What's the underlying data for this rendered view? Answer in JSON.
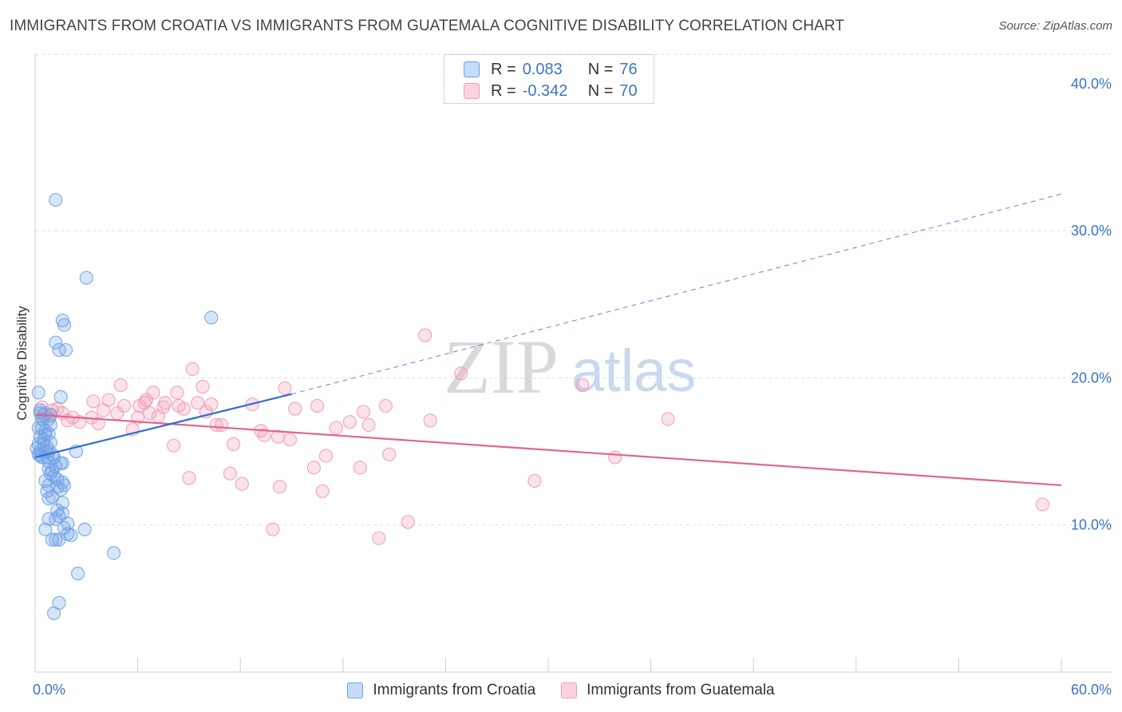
{
  "chart_data": {
    "type": "scatter",
    "title": "IMMIGRANTS FROM CROATIA VS IMMIGRANTS FROM GUATEMALA COGNITIVE DISABILITY CORRELATION CHART",
    "source": "Source: ZipAtlas.com",
    "ylabel": "Cognitive Disability",
    "xlabel": "",
    "xlim": [
      0,
      60
    ],
    "ylim": [
      0,
      42
    ],
    "x_tick_labels": [
      {
        "value": 0,
        "label": "0.0%"
      },
      {
        "value": 60,
        "label": "60.0%"
      }
    ],
    "y_tick_labels": [
      {
        "value": 10,
        "label": "10.0%"
      },
      {
        "value": 20,
        "label": "20.0%"
      },
      {
        "value": 30,
        "label": "30.0%"
      },
      {
        "value": 40,
        "label": "40.0%"
      }
    ],
    "grid": "horizontal dashed",
    "legend_placement": "top-center",
    "watermark": {
      "part1": "ZIP",
      "part2": "atlas"
    },
    "series": [
      {
        "name": "Immigrants from Croatia",
        "color": "#6fa3e6",
        "line_color": "#2f6fcf",
        "stats": {
          "r_label": "R =",
          "r_value": "0.083",
          "n_label": "N =",
          "n_value": "76"
        },
        "trend": {
          "x0": 0,
          "y0": 14.6,
          "x1": 15,
          "y1": 18.9,
          "dash_x1": 60,
          "dash_y1": 32.5
        },
        "points": [
          [
            0.2,
            19.0
          ],
          [
            0.3,
            17.8
          ],
          [
            0.5,
            17.5
          ],
          [
            0.4,
            17.2
          ],
          [
            0.8,
            17.2
          ],
          [
            0.2,
            16.6
          ],
          [
            0.4,
            16.6
          ],
          [
            0.9,
            16.8
          ],
          [
            0.3,
            16.0
          ],
          [
            0.6,
            16.2
          ],
          [
            0.8,
            16.2
          ],
          [
            0.2,
            15.5
          ],
          [
            0.5,
            15.5
          ],
          [
            0.1,
            15.2
          ],
          [
            0.3,
            15.0
          ],
          [
            0.6,
            15.0
          ],
          [
            0.8,
            15.0
          ],
          [
            0.2,
            14.8
          ],
          [
            0.4,
            14.6
          ],
          [
            0.7,
            14.6
          ],
          [
            1.0,
            14.8
          ],
          [
            1.1,
            14.6
          ],
          [
            2.4,
            15.0
          ],
          [
            0.8,
            14.3
          ],
          [
            1.5,
            14.2
          ],
          [
            1.6,
            14.2
          ],
          [
            0.8,
            13.8
          ],
          [
            1.0,
            13.7
          ],
          [
            0.6,
            13.0
          ],
          [
            1.1,
            13.3
          ],
          [
            1.3,
            13.1
          ],
          [
            1.6,
            12.9
          ],
          [
            0.8,
            12.7
          ],
          [
            1.3,
            12.6
          ],
          [
            1.7,
            12.7
          ],
          [
            0.7,
            12.3
          ],
          [
            1.0,
            11.9
          ],
          [
            0.8,
            11.8
          ],
          [
            1.6,
            11.5
          ],
          [
            1.6,
            10.8
          ],
          [
            1.4,
            10.6
          ],
          [
            0.8,
            10.4
          ],
          [
            1.2,
            10.4
          ],
          [
            1.9,
            10.1
          ],
          [
            0.6,
            9.7
          ],
          [
            1.9,
            9.4
          ],
          [
            2.1,
            9.3
          ],
          [
            2.9,
            9.7
          ],
          [
            1.0,
            9.0
          ],
          [
            1.2,
            9.0
          ],
          [
            1.4,
            9.0
          ],
          [
            4.6,
            8.1
          ],
          [
            2.5,
            6.7
          ],
          [
            1.4,
            4.7
          ],
          [
            1.1,
            4.0
          ],
          [
            1.2,
            32.1
          ],
          [
            3.0,
            26.8
          ],
          [
            10.3,
            24.1
          ],
          [
            1.6,
            23.9
          ],
          [
            1.7,
            23.6
          ],
          [
            1.2,
            22.4
          ],
          [
            1.4,
            21.9
          ],
          [
            1.8,
            21.9
          ],
          [
            1.5,
            18.7
          ],
          [
            0.3,
            17.6
          ],
          [
            0.9,
            17.5
          ],
          [
            0.5,
            15.8
          ],
          [
            0.7,
            15.3
          ],
          [
            0.3,
            14.7
          ],
          [
            1.2,
            14.0
          ],
          [
            1.5,
            12.4
          ],
          [
            0.9,
            13.5
          ],
          [
            1.3,
            11.0
          ],
          [
            1.7,
            9.8
          ],
          [
            0.6,
            16.4
          ],
          [
            0.9,
            15.6
          ]
        ]
      },
      {
        "name": "Immigrants from Guatemala",
        "color": "#f29ab4",
        "line_color": "#e0658f",
        "stats": {
          "r_label": "R =",
          "r_value": "-0.342",
          "n_label": "N =",
          "n_value": "70"
        },
        "trend": {
          "x0": 0,
          "y0": 17.5,
          "x1": 60,
          "y1": 12.7
        },
        "points": [
          [
            0.4,
            18.0
          ],
          [
            0.6,
            17.6
          ],
          [
            1.0,
            17.8
          ],
          [
            1.3,
            17.9
          ],
          [
            0.5,
            17.2
          ],
          [
            0.9,
            17.4
          ],
          [
            1.6,
            17.6
          ],
          [
            2.2,
            17.3
          ],
          [
            2.6,
            17.0
          ],
          [
            3.3,
            17.3
          ],
          [
            1.9,
            17.1
          ],
          [
            3.4,
            18.4
          ],
          [
            4.0,
            17.8
          ],
          [
            4.3,
            18.5
          ],
          [
            4.8,
            17.6
          ],
          [
            5.0,
            19.5
          ],
          [
            5.2,
            18.1
          ],
          [
            6.0,
            17.3
          ],
          [
            5.7,
            16.5
          ],
          [
            6.7,
            17.6
          ],
          [
            6.1,
            18.1
          ],
          [
            6.4,
            18.3
          ],
          [
            6.5,
            18.5
          ],
          [
            6.9,
            19.0
          ],
          [
            7.2,
            17.4
          ],
          [
            7.5,
            18.0
          ],
          [
            7.6,
            18.3
          ],
          [
            8.1,
            15.4
          ],
          [
            8.4,
            18.1
          ],
          [
            8.7,
            17.9
          ],
          [
            8.3,
            19.0
          ],
          [
            9.2,
            20.6
          ],
          [
            9.5,
            18.3
          ],
          [
            9.8,
            19.4
          ],
          [
            10.3,
            18.2
          ],
          [
            10.0,
            17.7
          ],
          [
            10.6,
            16.8
          ],
          [
            10.9,
            16.8
          ],
          [
            11.4,
            13.5
          ],
          [
            11.6,
            15.5
          ],
          [
            12.1,
            12.8
          ],
          [
            12.7,
            18.2
          ],
          [
            13.2,
            16.4
          ],
          [
            13.4,
            16.1
          ],
          [
            14.2,
            16.0
          ],
          [
            14.3,
            12.6
          ],
          [
            14.6,
            19.3
          ],
          [
            14.9,
            15.8
          ],
          [
            15.2,
            17.9
          ],
          [
            16.3,
            13.9
          ],
          [
            16.5,
            18.1
          ],
          [
            16.8,
            12.3
          ],
          [
            17.0,
            14.7
          ],
          [
            17.6,
            16.6
          ],
          [
            18.4,
            17.0
          ],
          [
            19.0,
            13.9
          ],
          [
            19.2,
            17.7
          ],
          [
            19.5,
            16.8
          ],
          [
            20.5,
            18.1
          ],
          [
            20.7,
            14.8
          ],
          [
            21.8,
            10.2
          ],
          [
            22.8,
            22.9
          ],
          [
            23.1,
            17.1
          ],
          [
            24.9,
            20.3
          ],
          [
            29.2,
            13.0
          ],
          [
            32.0,
            19.5
          ],
          [
            33.9,
            14.6
          ],
          [
            37.0,
            17.2
          ],
          [
            58.9,
            11.4
          ],
          [
            20.1,
            9.1
          ]
        ]
      }
    ]
  },
  "extra_pink": [
    [
      13.9,
      9.7
    ],
    [
      9.0,
      13.2
    ],
    [
      3.7,
      16.9
    ]
  ]
}
